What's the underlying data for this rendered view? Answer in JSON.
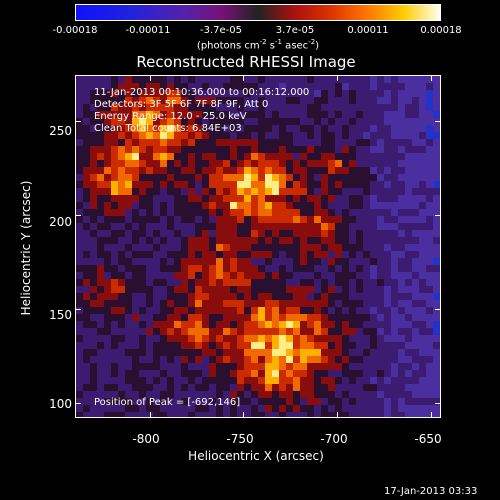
{
  "chart_data": {
    "type": "heatmap",
    "title": "Reconstructed RHESSI Image",
    "xlabel": "Heliocentric X (arcsec)",
    "ylabel": "Heliocentric Y (arcsec)",
    "xlim": [
      -840,
      -645
    ],
    "ylim": [
      92,
      275
    ],
    "x_ticks": [
      "-800",
      "-750",
      "-700",
      "-650"
    ],
    "x_tick_values": [
      -800,
      -750,
      -700,
      -650
    ],
    "y_ticks": [
      "100",
      "150",
      "200",
      "250"
    ],
    "y_tick_values": [
      100,
      150,
      200,
      250
    ],
    "colorbar": {
      "ticks": [
        "-0.00018",
        "-0.00011",
        "-3.7e-05",
        "3.7e-05",
        "0.00011",
        "0.00018"
      ],
      "tick_values": [
        -0.00018,
        -0.00011,
        -3.7e-05,
        3.7e-05,
        0.00011,
        0.00018
      ],
      "unit_text": "(photons cm",
      "unit_parts": [
        "(photons cm",
        "-2",
        " s",
        "-1",
        " asec",
        "-2",
        ")"
      ]
    },
    "annotations": [
      "11-Jan-2013 00:10:36.000 to 00:16:12.000",
      "Detectors: 3F 5F 6F 7F 8F 9F, Att 0",
      "Energy Range: 12.0 - 25.0 keV",
      "Clean     Total counts: 6.84E+03"
    ],
    "peak_label": "Position of Peak = [-692,146]",
    "peak_position": [
      -692,
      146
    ]
  },
  "footer": {
    "timestamp": "17-Jan-2013 03:33"
  }
}
